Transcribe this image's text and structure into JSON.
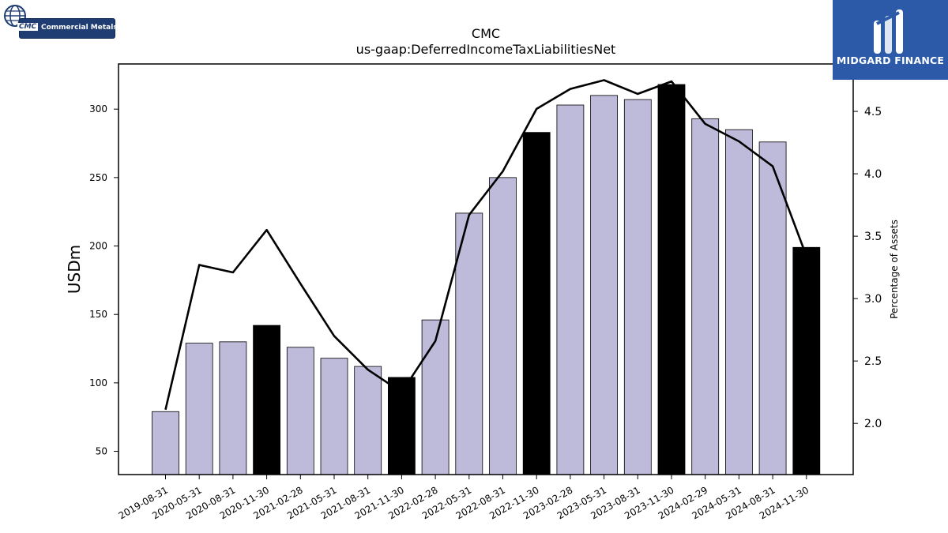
{
  "brands": {
    "top_left": {
      "abbr": "CMC",
      "name": "Commercial Metals"
    },
    "top_right": {
      "name": "MIDGARD FINANCE"
    }
  },
  "colors": {
    "bar_default": "#bebada",
    "bar_highlight": "#000000",
    "line": "#000000",
    "brand_blue": "#2c5aa8"
  },
  "chart_data": {
    "type": "bar",
    "title": "CMC",
    "subtitle": "us-gaap:DeferredIncomeTaxLiabilitiesNet",
    "ylabel": "USDm",
    "y2label": "Percentage of Assets",
    "categories": [
      "2019-08-31",
      "2020-05-31",
      "2020-08-31",
      "2020-11-30",
      "2021-02-28",
      "2021-05-31",
      "2021-08-31",
      "2021-11-30",
      "2022-02-28",
      "2022-05-31",
      "2022-08-31",
      "2022-11-30",
      "2023-02-28",
      "2023-05-31",
      "2023-08-31",
      "2023-11-30",
      "2024-02-29",
      "2024-05-31",
      "2024-08-31",
      "2024-11-30"
    ],
    "series": [
      {
        "type": "bar",
        "axis": "left",
        "values": [
          79,
          129,
          130,
          142,
          126,
          118,
          112,
          104,
          146,
          224,
          250,
          283,
          303,
          310,
          307,
          318,
          293,
          285,
          276,
          199
        ],
        "highlight": [
          false,
          false,
          false,
          true,
          false,
          false,
          false,
          true,
          false,
          false,
          false,
          true,
          false,
          false,
          false,
          true,
          false,
          false,
          false,
          true
        ]
      },
      {
        "type": "line",
        "axis": "right",
        "values": [
          2.11,
          3.27,
          3.21,
          3.55,
          3.12,
          2.7,
          2.43,
          2.25,
          2.66,
          3.67,
          4.02,
          4.52,
          4.68,
          4.75,
          4.64,
          4.74,
          4.4,
          4.26,
          4.06,
          3.34
        ]
      }
    ],
    "yticks": [
      50,
      100,
      150,
      200,
      250,
      300
    ],
    "ylim": [
      33,
      333
    ],
    "y2ticks": [
      "2.0",
      "2.5",
      "3.0",
      "3.5",
      "4.0",
      "4.5"
    ],
    "y2lim": [
      1.59,
      4.88
    ],
    "grid": false,
    "legend": "none"
  }
}
